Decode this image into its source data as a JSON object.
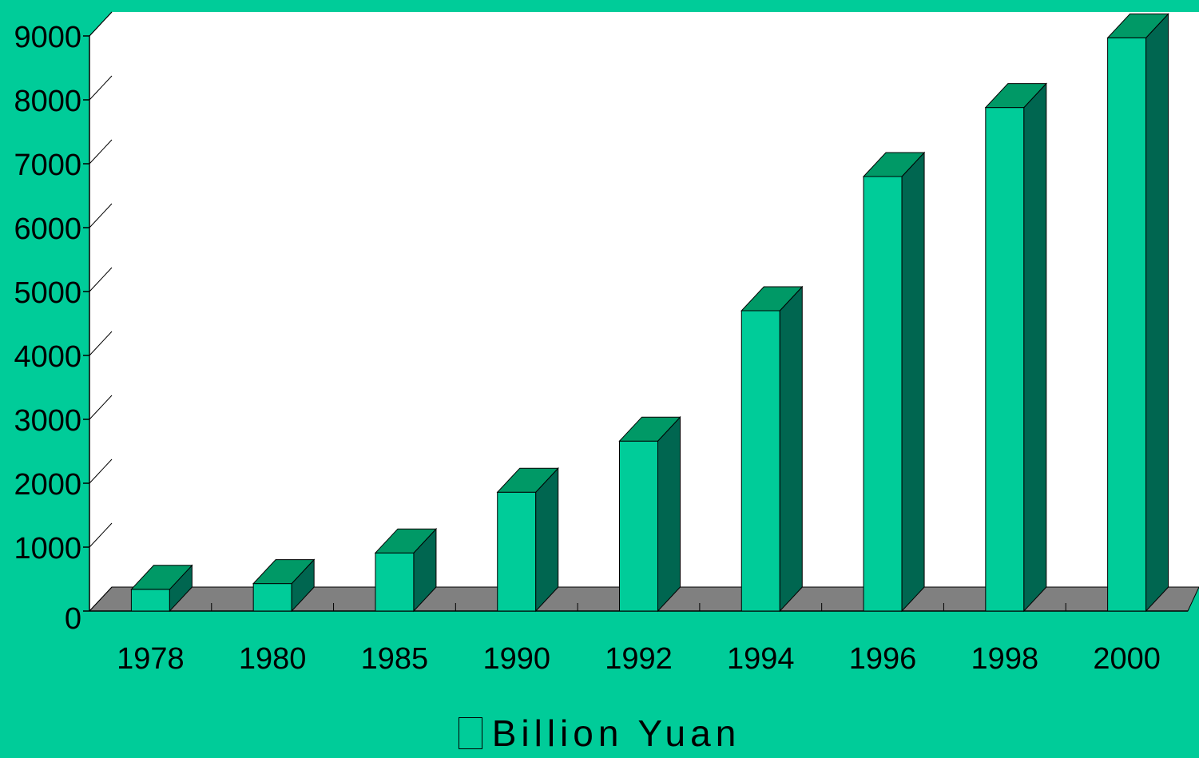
{
  "chart_data": {
    "type": "bar",
    "categories": [
      "1978",
      "1980",
      "1985",
      "1990",
      "1992",
      "1994",
      "1996",
      "1998",
      "2000"
    ],
    "series": [
      {
        "name": "Billion Yuan",
        "values": [
          340,
          430,
          910,
          1860,
          2660,
          4700,
          6800,
          7880,
          8970
        ]
      }
    ],
    "yticks": [
      0,
      1000,
      2000,
      3000,
      4000,
      5000,
      6000,
      7000,
      8000,
      9000
    ],
    "ylim": [
      0,
      9000
    ],
    "colors": {
      "background": "#00cc99",
      "plot_area": "#ffffff",
      "floor": "#808080",
      "bar_front": "#00cc99",
      "bar_top": "#009966",
      "bar_side": "#006650"
    },
    "legend_position": "bottom",
    "grid": false
  }
}
